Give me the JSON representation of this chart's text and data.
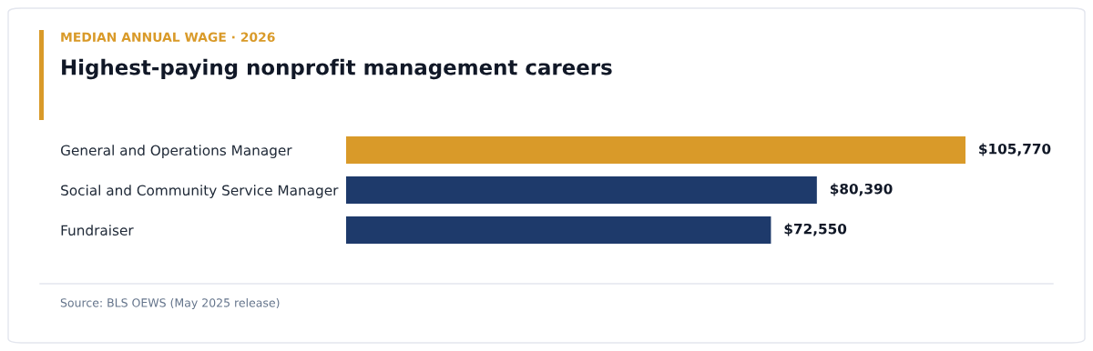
{
  "chart_data": {
    "type": "bar",
    "orientation": "horizontal",
    "subtitle": "MEDIAN ANNUAL WAGE · 2026",
    "title": "Highest-paying nonprofit management careers",
    "categories": [
      "General and Operations Manager",
      "Social and Community Service Manager",
      "Fundraiser"
    ],
    "values": [
      105770,
      80390,
      72550
    ],
    "colors": [
      "#d99a29",
      "#1e3a6b",
      "#1e3a6b"
    ],
    "value_labels": [
      "$105,770",
      "$80,390",
      "$72,550"
    ],
    "annotations": [
      "Source: BLS OEWS (May 2025 release)"
    ],
    "grid": false,
    "legend": false
  }
}
